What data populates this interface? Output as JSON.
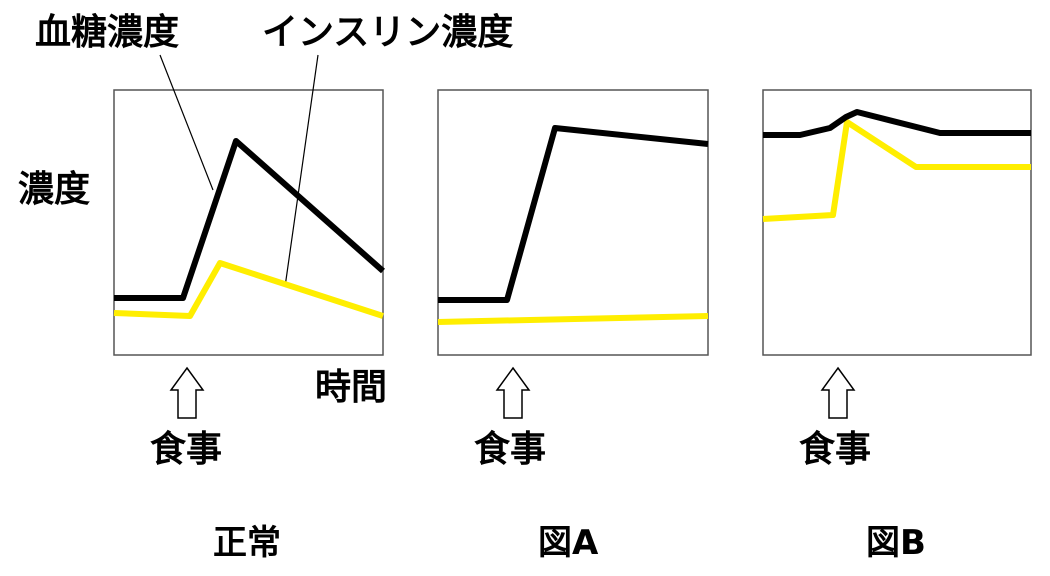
{
  "labels": {
    "glucose": "血糖濃度",
    "insulin": "インスリン濃度",
    "y_axis": "濃度",
    "x_axis": "時間",
    "meal": "食事"
  },
  "panels": [
    {
      "title": "正常"
    },
    {
      "title": "図A"
    },
    {
      "title": "図B"
    }
  ],
  "colors": {
    "glucose": "#000000",
    "insulin": "#ffee00",
    "frame": "#555555"
  }
}
